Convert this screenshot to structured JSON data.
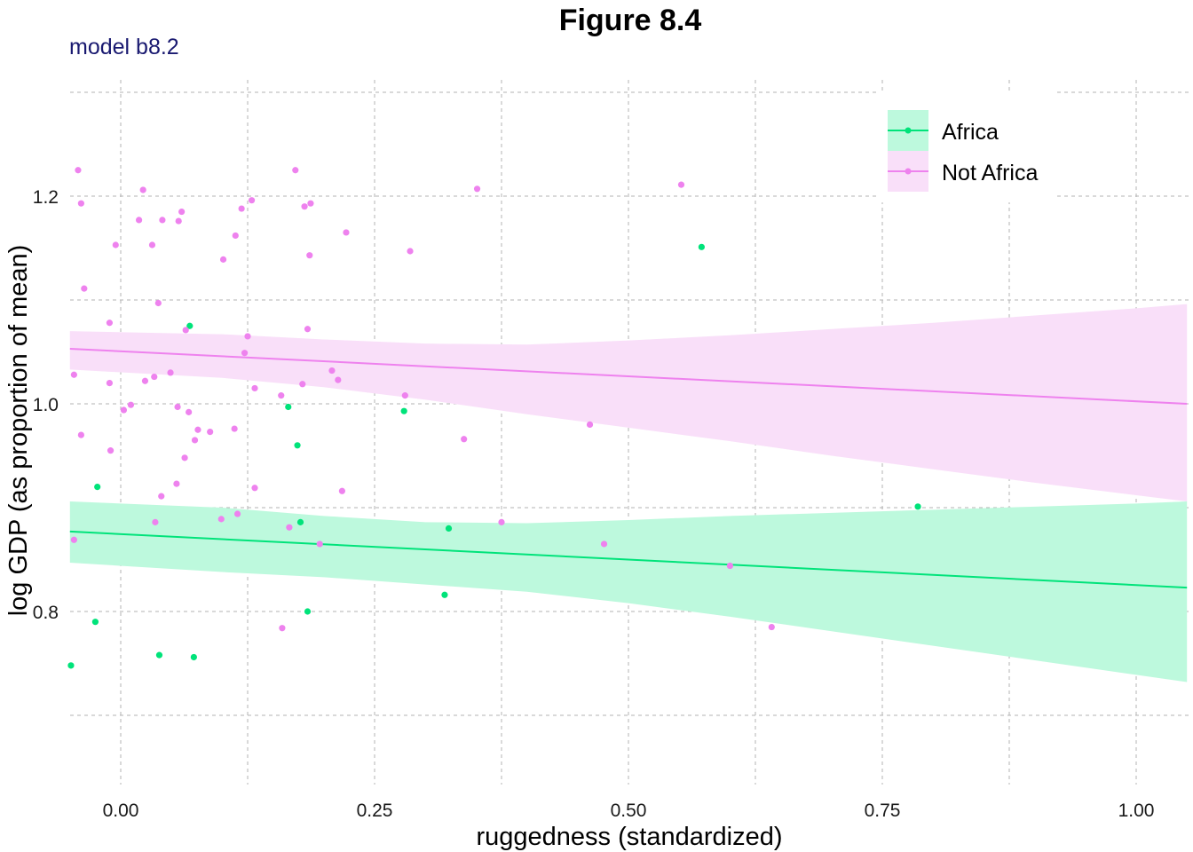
{
  "chart_data": {
    "type": "scatter",
    "title": "Figure 8.4",
    "subtitle": "model b8.2",
    "xlabel": "ruggedness (standardized)",
    "ylabel": "log GDP (as proportion of mean)",
    "xlim": [
      -0.05,
      1.05
    ],
    "ylim": [
      0.64,
      1.3
    ],
    "x_ticks": [
      0.0,
      0.25,
      0.5,
      0.75,
      1.0
    ],
    "x_tick_labels": [
      "0.00",
      "0.25",
      "0.50",
      "0.75",
      "1.00"
    ],
    "x_minor_ticks": [
      0.125,
      0.375,
      0.625,
      0.875
    ],
    "y_ticks": [
      0.8,
      1.0,
      1.2
    ],
    "y_tick_labels": [
      "0.8",
      "1.0",
      "1.2"
    ],
    "y_minor_ticks": [
      0.7,
      0.9,
      1.1,
      1.3
    ],
    "grid": true,
    "legend_position": "top-right",
    "series": [
      {
        "name": "Africa",
        "color": "#00e37a",
        "band_color": "#bdf9dd",
        "fit_line": {
          "x": [
            -0.05,
            1.05
          ],
          "y": [
            0.877,
            0.823
          ]
        },
        "ribbon": {
          "x": [
            -0.05,
            0.1,
            0.2,
            0.3,
            0.4,
            0.5,
            0.6,
            0.7,
            0.8,
            0.9,
            1.0,
            1.05
          ],
          "lower": [
            0.847,
            0.838,
            0.833,
            0.826,
            0.819,
            0.808,
            0.795,
            0.781,
            0.767,
            0.753,
            0.739,
            0.732
          ],
          "upper": [
            0.906,
            0.9,
            0.892,
            0.886,
            0.885,
            0.888,
            0.892,
            0.895,
            0.898,
            0.901,
            0.904,
            0.906
          ]
        },
        "points": [
          {
            "x": -0.049,
            "y": 0.748
          },
          {
            "x": -0.025,
            "y": 0.79
          },
          {
            "x": -0.023,
            "y": 0.92
          },
          {
            "x": 0.038,
            "y": 0.758
          },
          {
            "x": 0.068,
            "y": 1.075
          },
          {
            "x": 0.072,
            "y": 0.756
          },
          {
            "x": 0.165,
            "y": 0.997
          },
          {
            "x": 0.174,
            "y": 0.96
          },
          {
            "x": 0.177,
            "y": 0.886
          },
          {
            "x": 0.184,
            "y": 0.8
          },
          {
            "x": 0.279,
            "y": 0.993
          },
          {
            "x": 0.319,
            "y": 0.816
          },
          {
            "x": 0.323,
            "y": 0.88
          },
          {
            "x": 0.572,
            "y": 1.151
          },
          {
            "x": 0.785,
            "y": 0.901
          }
        ]
      },
      {
        "name": "Not Africa",
        "color": "#ee82ee",
        "band_color": "#f9dff9",
        "fit_line": {
          "x": [
            -0.05,
            1.05
          ],
          "y": [
            1.053,
            1.0
          ]
        },
        "ribbon": {
          "x": [
            -0.05,
            0.1,
            0.2,
            0.3,
            0.4,
            0.5,
            0.6,
            0.7,
            0.8,
            0.9,
            1.0,
            1.05
          ],
          "lower": [
            1.033,
            1.025,
            1.016,
            1.004,
            0.99,
            0.977,
            0.964,
            0.95,
            0.937,
            0.924,
            0.912,
            0.906
          ],
          "upper": [
            1.07,
            1.067,
            1.062,
            1.058,
            1.057,
            1.061,
            1.066,
            1.072,
            1.078,
            1.085,
            1.092,
            1.096
          ]
        },
        "points": [
          {
            "x": -0.046,
            "y": 1.028
          },
          {
            "x": -0.046,
            "y": 0.869
          },
          {
            "x": -0.042,
            "y": 1.225
          },
          {
            "x": -0.039,
            "y": 1.193
          },
          {
            "x": -0.039,
            "y": 0.97
          },
          {
            "x": -0.036,
            "y": 1.111
          },
          {
            "x": -0.011,
            "y": 1.078
          },
          {
            "x": -0.011,
            "y": 1.02
          },
          {
            "x": -0.01,
            "y": 0.955
          },
          {
            "x": -0.005,
            "y": 1.153
          },
          {
            "x": 0.003,
            "y": 0.994
          },
          {
            "x": 0.01,
            "y": 0.999
          },
          {
            "x": 0.018,
            "y": 1.177
          },
          {
            "x": 0.022,
            "y": 1.206
          },
          {
            "x": 0.024,
            "y": 1.022
          },
          {
            "x": 0.031,
            "y": 1.153
          },
          {
            "x": 0.033,
            "y": 1.026
          },
          {
            "x": 0.034,
            "y": 0.886
          },
          {
            "x": 0.037,
            "y": 1.097
          },
          {
            "x": 0.04,
            "y": 0.911
          },
          {
            "x": 0.041,
            "y": 1.177
          },
          {
            "x": 0.049,
            "y": 1.03
          },
          {
            "x": 0.055,
            "y": 0.923
          },
          {
            "x": 0.056,
            "y": 0.997
          },
          {
            "x": 0.057,
            "y": 1.176
          },
          {
            "x": 0.06,
            "y": 1.185
          },
          {
            "x": 0.063,
            "y": 0.948
          },
          {
            "x": 0.064,
            "y": 1.071
          },
          {
            "x": 0.067,
            "y": 0.992
          },
          {
            "x": 0.073,
            "y": 0.965
          },
          {
            "x": 0.076,
            "y": 0.975
          },
          {
            "x": 0.088,
            "y": 0.973
          },
          {
            "x": 0.099,
            "y": 0.889
          },
          {
            "x": 0.101,
            "y": 1.139
          },
          {
            "x": 0.112,
            "y": 0.976
          },
          {
            "x": 0.113,
            "y": 1.162
          },
          {
            "x": 0.115,
            "y": 0.894
          },
          {
            "x": 0.119,
            "y": 1.188
          },
          {
            "x": 0.122,
            "y": 1.049
          },
          {
            "x": 0.125,
            "y": 1.065
          },
          {
            "x": 0.129,
            "y": 1.196
          },
          {
            "x": 0.132,
            "y": 1.015
          },
          {
            "x": 0.132,
            "y": 0.919
          },
          {
            "x": 0.158,
            "y": 1.008
          },
          {
            "x": 0.159,
            "y": 0.784
          },
          {
            "x": 0.166,
            "y": 0.881
          },
          {
            "x": 0.172,
            "y": 1.225
          },
          {
            "x": 0.179,
            "y": 1.019
          },
          {
            "x": 0.181,
            "y": 1.19
          },
          {
            "x": 0.184,
            "y": 1.072
          },
          {
            "x": 0.186,
            "y": 1.143
          },
          {
            "x": 0.187,
            "y": 1.193
          },
          {
            "x": 0.196,
            "y": 0.865
          },
          {
            "x": 0.208,
            "y": 1.032
          },
          {
            "x": 0.214,
            "y": 1.023
          },
          {
            "x": 0.218,
            "y": 0.916
          },
          {
            "x": 0.222,
            "y": 1.165
          },
          {
            "x": 0.28,
            "y": 1.008
          },
          {
            "x": 0.285,
            "y": 1.147
          },
          {
            "x": 0.338,
            "y": 0.966
          },
          {
            "x": 0.351,
            "y": 1.207
          },
          {
            "x": 0.375,
            "y": 0.886
          },
          {
            "x": 0.462,
            "y": 0.98
          },
          {
            "x": 0.476,
            "y": 0.865
          },
          {
            "x": 0.552,
            "y": 1.211
          },
          {
            "x": 0.6,
            "y": 0.844
          },
          {
            "x": 0.641,
            "y": 0.785
          }
        ]
      }
    ]
  }
}
